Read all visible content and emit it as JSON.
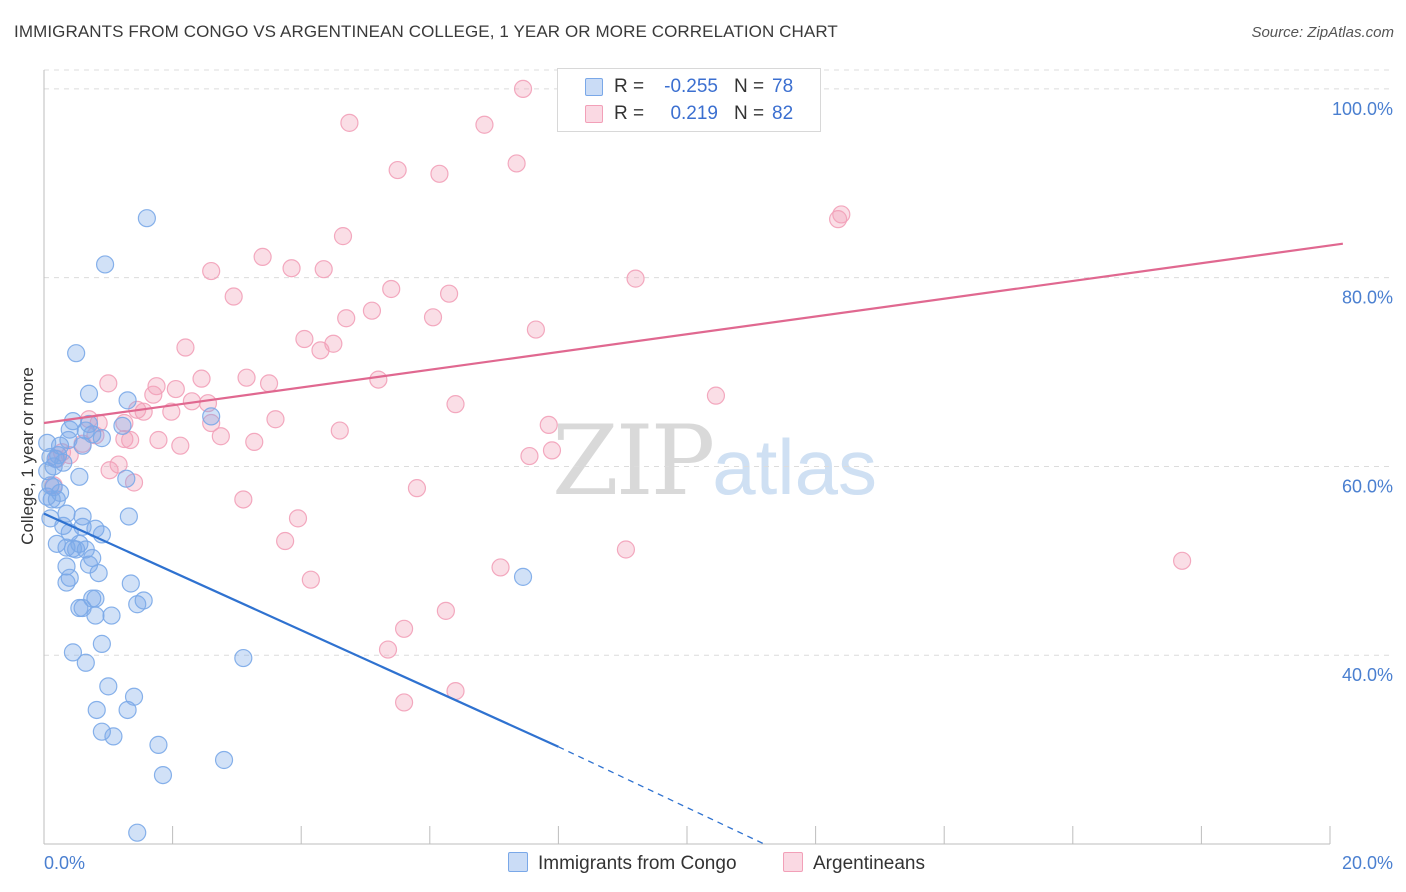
{
  "header": {
    "title": "IMMIGRANTS FROM CONGO VS ARGENTINEAN COLLEGE, 1 YEAR OR MORE CORRELATION CHART",
    "source": "Source: ZipAtlas.com"
  },
  "watermark": {
    "zip": "ZIP",
    "atlas": "atlas"
  },
  "legend": {
    "rows": [
      {
        "r_label": "R =",
        "r_value": "-0.255",
        "n_label": "N =",
        "n_value": "78",
        "color": "#7aa8e8"
      },
      {
        "r_label": "R =",
        "r_value": "0.219",
        "n_label": "N =",
        "n_value": "82",
        "color": "#f2a0b8"
      }
    ]
  },
  "bottom_legend": {
    "congo": "Immigrants from Congo",
    "argentinean": "Argentineans"
  },
  "chart_data": {
    "type": "scatter",
    "title": "IMMIGRANTS FROM CONGO VS ARGENTINEAN COLLEGE, 1 YEAR OR MORE CORRELATION CHART",
    "xlabel": "",
    "ylabel": "College, 1 year or more",
    "xlim": [
      0,
      20
    ],
    "ylim": [
      20,
      102
    ],
    "x_tick_labels": [
      {
        "value": 0,
        "label": "0.0%"
      },
      {
        "value": 20,
        "label": "20.0%"
      }
    ],
    "y_tick_labels": [
      {
        "value": 40,
        "label": "40.0%"
      },
      {
        "value": 60,
        "label": "60.0%"
      },
      {
        "value": 80,
        "label": "80.0%"
      },
      {
        "value": 100,
        "label": "100.0%"
      }
    ],
    "y_gridlines": [
      40,
      60,
      80,
      100
    ],
    "series": [
      {
        "name": "Immigrants from Congo",
        "color": "#7aa8e8",
        "line_color": "#2f72d0",
        "trend": {
          "x0": 0.0,
          "y0": 55.0,
          "x1": 8.0,
          "y1": 30.3,
          "dash_x_end": 11.2,
          "dash_y_end": 20.0
        },
        "points": [
          [
            0.05,
            62.5
          ],
          [
            0.1,
            61
          ],
          [
            0.15,
            60
          ],
          [
            0.05,
            59.5
          ],
          [
            0.1,
            58
          ],
          [
            0.15,
            57.8
          ],
          [
            0.25,
            57.2
          ],
          [
            0.05,
            56.8
          ],
          [
            0.12,
            56.5
          ],
          [
            0.2,
            56.5
          ],
          [
            0.35,
            55
          ],
          [
            0.1,
            54.5
          ],
          [
            0.3,
            53.7
          ],
          [
            0.4,
            53
          ],
          [
            0.6,
            53.6
          ],
          [
            0.8,
            53.4
          ],
          [
            0.9,
            52.8
          ],
          [
            0.2,
            51.8
          ],
          [
            0.35,
            51.4
          ],
          [
            0.5,
            51.2
          ],
          [
            0.65,
            51.2
          ],
          [
            0.45,
            51.3
          ],
          [
            0.55,
            51.8
          ],
          [
            0.75,
            50.3
          ],
          [
            0.7,
            49.6
          ],
          [
            0.35,
            49.4
          ],
          [
            0.85,
            48.7
          ],
          [
            0.4,
            48.2
          ],
          [
            0.35,
            47.7
          ],
          [
            1.35,
            47.6
          ],
          [
            0.8,
            46
          ],
          [
            0.55,
            45
          ],
          [
            0.75,
            46
          ],
          [
            0.6,
            45
          ],
          [
            1.55,
            45.8
          ],
          [
            1.45,
            45.4
          ],
          [
            0.8,
            44.2
          ],
          [
            1.05,
            44.2
          ],
          [
            0.9,
            41.2
          ],
          [
            0.45,
            40.3
          ],
          [
            0.65,
            39.2
          ],
          [
            3.1,
            39.7
          ],
          [
            1.0,
            36.7
          ],
          [
            1.4,
            35.6
          ],
          [
            0.82,
            34.2
          ],
          [
            1.3,
            34.2
          ],
          [
            0.9,
            31.9
          ],
          [
            1.08,
            31.4
          ],
          [
            1.78,
            30.5
          ],
          [
            1.85,
            27.3
          ],
          [
            2.8,
            28.9
          ],
          [
            1.45,
            21.2
          ],
          [
            1.6,
            86.3
          ],
          [
            0.95,
            81.4
          ],
          [
            0.5,
            72
          ],
          [
            0.7,
            67.7
          ],
          [
            1.3,
            67
          ],
          [
            2.6,
            65.3
          ],
          [
            0.45,
            64.8
          ],
          [
            0.7,
            64.5
          ],
          [
            1.22,
            64.3
          ],
          [
            0.4,
            63.9
          ],
          [
            0.65,
            63.8
          ],
          [
            0.75,
            63.4
          ],
          [
            0.9,
            63
          ],
          [
            0.38,
            62.8
          ],
          [
            0.25,
            62.2
          ],
          [
            0.6,
            62.2
          ],
          [
            0.22,
            61.2
          ],
          [
            0.18,
            60.8
          ],
          [
            0.3,
            60.4
          ],
          [
            0.55,
            58.9
          ],
          [
            1.28,
            58.7
          ],
          [
            0.6,
            54.7
          ],
          [
            1.32,
            54.7
          ],
          [
            7.45,
            48.3
          ]
        ]
      },
      {
        "name": "Argentineans",
        "color": "#f2a0b8",
        "line_color": "#e06890",
        "trend": {
          "x0": 0.0,
          "y0": 64.6,
          "x1": 20.2,
          "y1": 83.6
        },
        "points": [
          [
            7.45,
            100
          ],
          [
            9.5,
            100
          ],
          [
            8.85,
            97.5
          ],
          [
            9.6,
            97.2
          ],
          [
            4.75,
            96.4
          ],
          [
            6.85,
            96.2
          ],
          [
            7.35,
            92.1
          ],
          [
            5.5,
            91.4
          ],
          [
            6.15,
            91
          ],
          [
            12.35,
            86.2
          ],
          [
            12.4,
            86.7
          ],
          [
            4.65,
            84.4
          ],
          [
            3.4,
            82.2
          ],
          [
            3.85,
            81
          ],
          [
            4.35,
            80.9
          ],
          [
            2.6,
            80.7
          ],
          [
            9.2,
            79.9
          ],
          [
            5.4,
            78.8
          ],
          [
            6.3,
            78.3
          ],
          [
            2.95,
            78
          ],
          [
            5.1,
            76.5
          ],
          [
            4.7,
            75.7
          ],
          [
            6.05,
            75.8
          ],
          [
            7.65,
            74.5
          ],
          [
            4.05,
            73.5
          ],
          [
            4.5,
            73
          ],
          [
            4.3,
            72.3
          ],
          [
            2.2,
            72.6
          ],
          [
            5.2,
            69.2
          ],
          [
            3.15,
            69.4
          ],
          [
            2.45,
            69.3
          ],
          [
            3.5,
            68.8
          ],
          [
            1.0,
            68.8
          ],
          [
            1.75,
            68.5
          ],
          [
            2.05,
            68.2
          ],
          [
            1.7,
            67.6
          ],
          [
            2.3,
            66.9
          ],
          [
            2.55,
            66.7
          ],
          [
            6.4,
            66.6
          ],
          [
            10.45,
            67.5
          ],
          [
            1.45,
            66
          ],
          [
            1.55,
            65.8
          ],
          [
            1.98,
            65.8
          ],
          [
            3.6,
            65
          ],
          [
            1.25,
            64.6
          ],
          [
            0.85,
            64.6
          ],
          [
            0.7,
            65
          ],
          [
            2.6,
            64.6
          ],
          [
            2.75,
            63.2
          ],
          [
            7.85,
            64.4
          ],
          [
            4.6,
            63.8
          ],
          [
            3.27,
            62.6
          ],
          [
            1.34,
            62.8
          ],
          [
            1.78,
            62.8
          ],
          [
            2.12,
            62.2
          ],
          [
            1.25,
            62.9
          ],
          [
            0.8,
            63.3
          ],
          [
            0.6,
            62.4
          ],
          [
            0.28,
            61.5
          ],
          [
            0.4,
            61.2
          ],
          [
            0.2,
            60.8
          ],
          [
            7.9,
            61.7
          ],
          [
            7.55,
            61.1
          ],
          [
            1.16,
            60.2
          ],
          [
            1.02,
            59.6
          ],
          [
            0.15,
            58
          ],
          [
            1.4,
            58.3
          ],
          [
            5.8,
            57.7
          ],
          [
            3.1,
            56.5
          ],
          [
            3.95,
            54.5
          ],
          [
            3.75,
            52.1
          ],
          [
            9.05,
            51.2
          ],
          [
            17.7,
            50
          ],
          [
            7.1,
            49.3
          ],
          [
            4.15,
            48
          ],
          [
            6.25,
            44.7
          ],
          [
            5.6,
            42.8
          ],
          [
            5.35,
            40.6
          ],
          [
            6.4,
            36.2
          ],
          [
            5.6,
            35
          ]
        ]
      }
    ]
  }
}
